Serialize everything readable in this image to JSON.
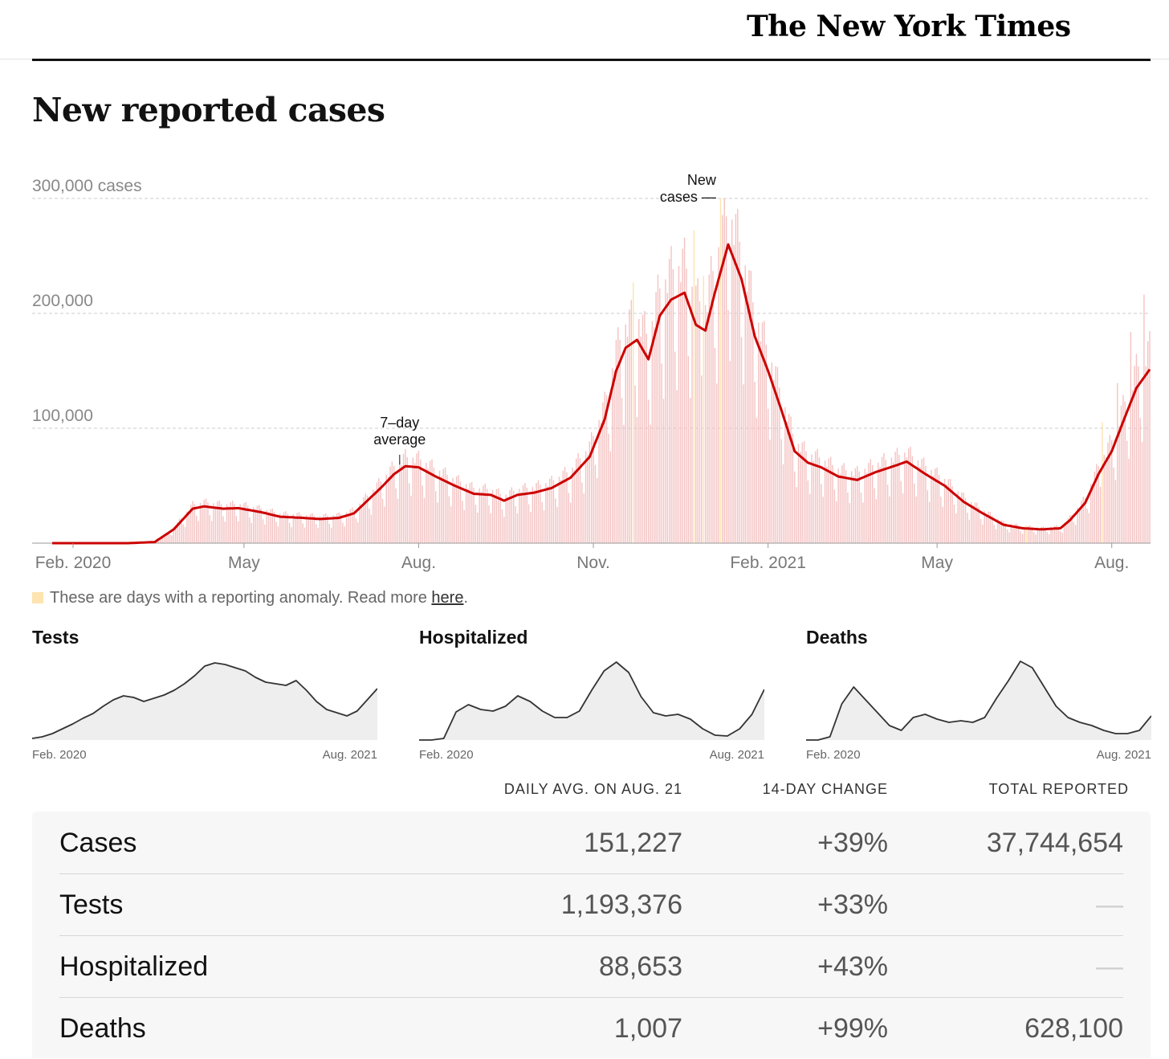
{
  "masthead": {
    "logo_text": "The New York Times"
  },
  "page_title": "New reported cases",
  "chart_data": [
    {
      "type": "bar",
      "title": "New reported cases",
      "ylabel": "cases",
      "ylim": [
        0,
        300000
      ],
      "y_ticks": [
        {
          "value": 300000,
          "label": "300,000 cases"
        },
        {
          "value": 200000,
          "label": "200,000"
        },
        {
          "value": 100000,
          "label": "100,000"
        }
      ],
      "x_range": [
        "2020-01-21",
        "2021-08-21"
      ],
      "x_ticks": [
        {
          "date": "2020-02-01",
          "label": "Feb. 2020"
        },
        {
          "date": "2020-05-01",
          "label": "May"
        },
        {
          "date": "2020-08-01",
          "label": "Aug."
        },
        {
          "date": "2020-11-01",
          "label": "Nov."
        },
        {
          "date": "2021-02-01",
          "label": "Feb. 2021"
        },
        {
          "date": "2021-05-01",
          "label": "May"
        },
        {
          "date": "2021-08-01",
          "label": "Aug."
        }
      ],
      "grid": true,
      "annotations": [
        {
          "text": [
            "7–day",
            "average"
          ],
          "date": "2020-07-22",
          "value": 67000,
          "target": "average"
        },
        {
          "text": [
            "New",
            "cases —"
          ],
          "date": "2021-01-08",
          "value": 300000,
          "target": "daily"
        }
      ],
      "series": [
        {
          "kind": "line",
          "color": "#cc0000",
          "points": [
            [
              "2020-01-21",
              0
            ],
            [
              "2020-03-01",
              0
            ],
            [
              "2020-03-15",
              1000
            ],
            [
              "2020-03-25",
              12000
            ],
            [
              "2020-04-04",
              30000
            ],
            [
              "2020-04-10",
              32000
            ],
            [
              "2020-04-20",
              30000
            ],
            [
              "2020-04-28",
              30500
            ],
            [
              "2020-05-10",
              27000
            ],
            [
              "2020-05-20",
              23000
            ],
            [
              "2020-06-01",
              22000
            ],
            [
              "2020-06-10",
              21000
            ],
            [
              "2020-06-20",
              22000
            ],
            [
              "2020-06-28",
              26000
            ],
            [
              "2020-07-05",
              37000
            ],
            [
              "2020-07-12",
              48000
            ],
            [
              "2020-07-19",
              60000
            ],
            [
              "2020-07-25",
              67000
            ],
            [
              "2020-08-01",
              66000
            ],
            [
              "2020-08-10",
              58000
            ],
            [
              "2020-08-20",
              50000
            ],
            [
              "2020-08-30",
              43000
            ],
            [
              "2020-09-08",
              42000
            ],
            [
              "2020-09-15",
              37000
            ],
            [
              "2020-09-22",
              42000
            ],
            [
              "2020-10-01",
              44000
            ],
            [
              "2020-10-10",
              48000
            ],
            [
              "2020-10-20",
              57000
            ],
            [
              "2020-10-30",
              75000
            ],
            [
              "2020-11-07",
              108000
            ],
            [
              "2020-11-13",
              150000
            ],
            [
              "2020-11-18",
              170000
            ],
            [
              "2020-11-24",
              177000
            ],
            [
              "2020-11-30",
              160000
            ],
            [
              "2020-12-06",
              198000
            ],
            [
              "2020-12-12",
              212000
            ],
            [
              "2020-12-19",
              218000
            ],
            [
              "2020-12-25",
              190000
            ],
            [
              "2020-12-30",
              185000
            ],
            [
              "2021-01-04",
              218000
            ],
            [
              "2021-01-11",
              260000
            ],
            [
              "2021-01-18",
              230000
            ],
            [
              "2021-01-25",
              180000
            ],
            [
              "2021-02-01",
              150000
            ],
            [
              "2021-02-08",
              116000
            ],
            [
              "2021-02-15",
              80000
            ],
            [
              "2021-02-22",
              70000
            ],
            [
              "2021-03-01",
              66000
            ],
            [
              "2021-03-10",
              58000
            ],
            [
              "2021-03-20",
              55000
            ],
            [
              "2021-03-30",
              62000
            ],
            [
              "2021-04-10",
              68000
            ],
            [
              "2021-04-15",
              71000
            ],
            [
              "2021-04-25",
              60000
            ],
            [
              "2021-05-05",
              50000
            ],
            [
              "2021-05-15",
              36000
            ],
            [
              "2021-05-25",
              26000
            ],
            [
              "2021-06-05",
              16000
            ],
            [
              "2021-06-15",
              13000
            ],
            [
              "2021-06-25",
              12000
            ],
            [
              "2021-07-05",
              13000
            ],
            [
              "2021-07-10",
              20000
            ],
            [
              "2021-07-18",
              35000
            ],
            [
              "2021-07-25",
              60000
            ],
            [
              "2021-08-01",
              80000
            ],
            [
              "2021-08-08",
              110000
            ],
            [
              "2021-08-14",
              135000
            ],
            [
              "2021-08-21",
              151227
            ]
          ]
        },
        {
          "kind": "bars",
          "color": "#f4c2c2",
          "anomaly_color": "#fde4b0",
          "description": "daily new cases (bars), roughly following the 7-day average with weekly oscillation"
        }
      ],
      "legend": {
        "swatch_color": "#fde4b0",
        "text": "These are days with a reporting anomaly. Read more ",
        "link": "here",
        "suffix": "."
      }
    },
    {
      "type": "area",
      "title": "Tests",
      "x_range_labels": [
        "Feb. 2020",
        "Aug. 2021"
      ],
      "values": [
        0.02,
        0.04,
        0.08,
        0.14,
        0.2,
        0.27,
        0.33,
        0.42,
        0.5,
        0.55,
        0.53,
        0.48,
        0.52,
        0.56,
        0.62,
        0.7,
        0.8,
        0.92,
        0.96,
        0.94,
        0.9,
        0.86,
        0.78,
        0.72,
        0.7,
        0.68,
        0.74,
        0.62,
        0.48,
        0.38,
        0.34,
        0.3,
        0.36,
        0.5,
        0.64
      ]
    },
    {
      "type": "area",
      "title": "Hospitalized",
      "x_range_labels": [
        "Feb. 2020",
        "Aug. 2021"
      ],
      "values": [
        0,
        0,
        0.02,
        0.35,
        0.44,
        0.38,
        0.36,
        0.42,
        0.55,
        0.48,
        0.36,
        0.28,
        0.28,
        0.36,
        0.62,
        0.86,
        0.97,
        0.84,
        0.54,
        0.34,
        0.3,
        0.32,
        0.26,
        0.14,
        0.06,
        0.05,
        0.14,
        0.32,
        0.63
      ]
    },
    {
      "type": "area",
      "title": "Deaths",
      "x_range_labels": [
        "Feb. 2020",
        "Aug. 2021"
      ],
      "values": [
        0,
        0,
        0.04,
        0.45,
        0.66,
        0.5,
        0.34,
        0.18,
        0.12,
        0.28,
        0.32,
        0.26,
        0.22,
        0.24,
        0.22,
        0.28,
        0.52,
        0.74,
        0.98,
        0.9,
        0.66,
        0.42,
        0.28,
        0.22,
        0.18,
        0.12,
        0.08,
        0.08,
        0.12,
        0.3
      ]
    }
  ],
  "summary": {
    "headers": [
      "DAILY AVG. ON AUG. 21",
      "14-DAY CHANGE",
      "TOTAL REPORTED"
    ],
    "rows": [
      {
        "label": "Cases",
        "daily": "151,227",
        "change": "+39%",
        "total": "37,744,654"
      },
      {
        "label": "Tests",
        "daily": "1,193,376",
        "change": "+33%",
        "total": "—"
      },
      {
        "label": "Hospitalized",
        "daily": "88,653",
        "change": "+43%",
        "total": "—"
      },
      {
        "label": "Deaths",
        "daily": "1,007",
        "change": "+99%",
        "total": "628,100"
      }
    ]
  }
}
